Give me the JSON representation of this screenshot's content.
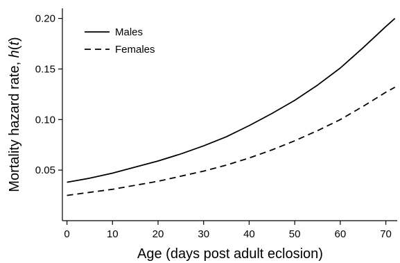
{
  "chart_data": {
    "type": "line",
    "title": "",
    "xlabel": "Age (days post adult eclosion)",
    "ylabel_prefix": "Mortality hazard rate, ",
    "ylabel_var": "h",
    "ylabel_arg": "t",
    "ylabel_suffix": "",
    "xlim": [
      -1,
      72.5
    ],
    "ylim": [
      0,
      0.21
    ],
    "xticks": [
      0,
      10,
      20,
      30,
      40,
      50,
      60,
      70
    ],
    "xtick_labels": [
      "0",
      "10",
      "20",
      "30",
      "40",
      "50",
      "60",
      "70"
    ],
    "yticks": [
      0.05,
      0.1,
      0.15,
      0.2
    ],
    "ytick_labels": [
      "0.05",
      "0.10",
      "0.15",
      "0.20"
    ],
    "grid": false,
    "legend": "top-left",
    "series": [
      {
        "name": "Males",
        "style": "solid",
        "color": "#000000",
        "x": [
          0,
          5,
          10,
          15,
          20,
          25,
          30,
          35,
          40,
          45,
          50,
          55,
          60,
          65,
          70,
          72
        ],
        "y": [
          0.038,
          0.042,
          0.047,
          0.053,
          0.059,
          0.066,
          0.074,
          0.083,
          0.094,
          0.106,
          0.119,
          0.134,
          0.151,
          0.171,
          0.192,
          0.2
        ]
      },
      {
        "name": "Females",
        "style": "dashed",
        "color": "#000000",
        "x": [
          0,
          5,
          10,
          15,
          20,
          25,
          30,
          35,
          40,
          45,
          50,
          55,
          60,
          65,
          70,
          72
        ],
        "y": [
          0.025,
          0.028,
          0.031,
          0.035,
          0.039,
          0.044,
          0.049,
          0.055,
          0.062,
          0.07,
          0.079,
          0.089,
          0.1,
          0.113,
          0.127,
          0.132
        ]
      }
    ]
  }
}
